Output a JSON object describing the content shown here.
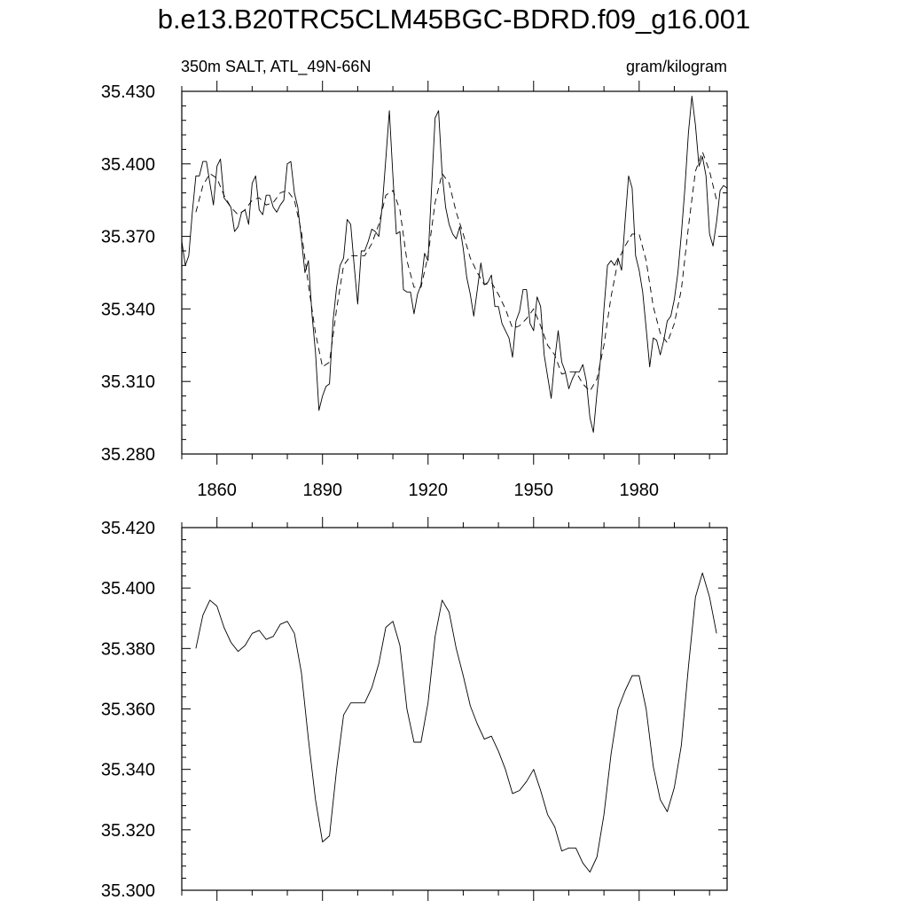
{
  "title": "b.e13.B20TRC5CLM45BGC-BDRD.f09_g16.001",
  "left_string": "350m SALT, ATL_49N-66N",
  "right_string": "gram/kilogram",
  "chart_data": [
    {
      "type": "line",
      "panel": "top",
      "xlim": [
        1850,
        2005
      ],
      "ylim": [
        35.28,
        35.43
      ],
      "xticks": [
        1860,
        1890,
        1920,
        1950,
        1980
      ],
      "xtick_labels": [
        "1860",
        "1890",
        "1920",
        "1950",
        "1980"
      ],
      "yticks": [
        35.28,
        35.31,
        35.34,
        35.37,
        35.4,
        35.43
      ],
      "ytick_labels": [
        "35.280",
        "35.310",
        "35.340",
        "35.370",
        "35.400",
        "35.430"
      ],
      "series": [
        {
          "style": "solid",
          "x": [
            1850,
            1851,
            1852,
            1853,
            1854,
            1855,
            1856,
            1857,
            1858,
            1859,
            1860,
            1861,
            1862,
            1863,
            1864,
            1865,
            1866,
            1867,
            1868,
            1869,
            1870,
            1871,
            1872,
            1873,
            1874,
            1875,
            1876,
            1877,
            1878,
            1879,
            1880,
            1881,
            1882,
            1883,
            1884,
            1885,
            1886,
            1887,
            1888,
            1889,
            1890,
            1891,
            1892,
            1893,
            1894,
            1895,
            1896,
            1897,
            1898,
            1899,
            1900,
            1901,
            1902,
            1903,
            1904,
            1905,
            1906,
            1907,
            1908,
            1909,
            1910,
            1911,
            1912,
            1913,
            1914,
            1915,
            1916,
            1917,
            1918,
            1919,
            1920,
            1921,
            1922,
            1923,
            1924,
            1925,
            1926,
            1927,
            1928,
            1929,
            1930,
            1931,
            1932,
            1933,
            1934,
            1935,
            1936,
            1937,
            1938,
            1939,
            1940,
            1941,
            1942,
            1943,
            1944,
            1945,
            1946,
            1947,
            1948,
            1949,
            1950,
            1951,
            1952,
            1953,
            1954,
            1955,
            1956,
            1957,
            1958,
            1959,
            1960,
            1961,
            1962,
            1963,
            1964,
            1965,
            1966,
            1967,
            1968,
            1969,
            1970,
            1971,
            1972,
            1973,
            1974,
            1975,
            1976,
            1977,
            1978,
            1979,
            1980,
            1981,
            1982,
            1983,
            1984,
            1985,
            1986,
            1987,
            1988,
            1989,
            1990,
            1991,
            1992,
            1993,
            1994,
            1995,
            1996,
            1997,
            1998,
            1999,
            2000,
            2001,
            2002,
            2003,
            2004,
            2005
          ],
          "y": [
            35.368,
            35.358,
            35.362,
            35.38,
            35.395,
            35.395,
            35.401,
            35.401,
            35.392,
            35.383,
            35.399,
            35.402,
            35.386,
            35.384,
            35.382,
            35.372,
            35.374,
            35.38,
            35.381,
            35.375,
            35.392,
            35.395,
            35.381,
            35.379,
            35.387,
            35.387,
            35.382,
            35.38,
            35.383,
            35.385,
            35.4,
            35.401,
            35.388,
            35.382,
            35.369,
            35.355,
            35.36,
            35.338,
            35.322,
            35.298,
            35.304,
            35.308,
            35.309,
            35.335,
            35.349,
            35.358,
            35.361,
            35.377,
            35.375,
            35.358,
            35.342,
            35.364,
            35.364,
            35.368,
            35.373,
            35.372,
            35.37,
            35.383,
            35.402,
            35.422,
            35.395,
            35.371,
            35.372,
            35.348,
            35.347,
            35.347,
            35.338,
            35.346,
            35.35,
            35.363,
            35.36,
            35.39,
            35.419,
            35.422,
            35.396,
            35.382,
            35.375,
            35.371,
            35.369,
            35.374,
            35.365,
            35.353,
            35.346,
            35.337,
            35.348,
            35.359,
            35.35,
            35.351,
            35.354,
            35.341,
            35.341,
            35.334,
            35.331,
            35.328,
            35.32,
            35.335,
            35.339,
            35.348,
            35.348,
            35.334,
            35.331,
            35.345,
            35.341,
            35.321,
            35.312,
            35.303,
            35.319,
            35.331,
            35.318,
            35.314,
            35.307,
            35.311,
            35.314,
            35.314,
            35.317,
            35.31,
            35.295,
            35.289,
            35.305,
            35.319,
            35.34,
            35.358,
            35.36,
            35.358,
            35.361,
            35.356,
            35.376,
            35.395,
            35.39,
            35.362,
            35.356,
            35.347,
            35.332,
            35.316,
            35.328,
            35.327,
            35.321,
            35.327,
            35.335,
            35.337,
            35.344,
            35.355,
            35.371,
            35.39,
            35.413,
            35.428,
            35.416,
            35.399,
            35.403,
            35.395,
            35.371,
            35.366,
            35.376,
            35.389,
            35.391,
            35.39
          ]
        },
        {
          "style": "dashed",
          "x": [
            1854,
            1856,
            1858,
            1860,
            1862,
            1864,
            1866,
            1868,
            1870,
            1872,
            1874,
            1876,
            1878,
            1880,
            1882,
            1884,
            1886,
            1888,
            1890,
            1892,
            1894,
            1896,
            1898,
            1900,
            1902,
            1904,
            1906,
            1908,
            1910,
            1912,
            1914,
            1916,
            1918,
            1920,
            1922,
            1924,
            1926,
            1928,
            1930,
            1932,
            1934,
            1936,
            1938,
            1940,
            1942,
            1944,
            1946,
            1948,
            1950,
            1952,
            1954,
            1956,
            1958,
            1960,
            1962,
            1964,
            1966,
            1968,
            1970,
            1972,
            1974,
            1976,
            1978,
            1980,
            1982,
            1984,
            1986,
            1988,
            1990,
            1992,
            1994,
            1996,
            1998,
            2000,
            2002
          ],
          "y": [
            35.38,
            35.391,
            35.396,
            35.394,
            35.387,
            35.382,
            35.379,
            35.381,
            35.385,
            35.386,
            35.383,
            35.384,
            35.388,
            35.389,
            35.385,
            35.372,
            35.35,
            35.33,
            35.316,
            35.318,
            35.34,
            35.358,
            35.362,
            35.362,
            35.362,
            35.367,
            35.375,
            35.387,
            35.389,
            35.381,
            35.36,
            35.349,
            35.349,
            35.362,
            35.384,
            35.396,
            35.392,
            35.38,
            35.371,
            35.361,
            35.355,
            35.35,
            35.351,
            35.346,
            35.34,
            35.332,
            35.333,
            35.336,
            35.34,
            35.333,
            35.325,
            35.321,
            35.313,
            35.314,
            35.314,
            35.309,
            35.306,
            35.311,
            35.325,
            35.345,
            35.36,
            35.366,
            35.371,
            35.371,
            35.36,
            35.341,
            35.33,
            35.326,
            35.334,
            35.348,
            35.374,
            35.397,
            35.405,
            35.397,
            35.385
          ]
        }
      ]
    },
    {
      "type": "line",
      "panel": "bottom",
      "xlim": [
        1850,
        2005
      ],
      "ylim": [
        35.3,
        35.42
      ],
      "xticks": [
        1860,
        1890,
        1920,
        1950,
        1980
      ],
      "yticks": [
        35.3,
        35.32,
        35.34,
        35.36,
        35.38,
        35.4,
        35.42
      ],
      "ytick_labels": [
        "35.300",
        "35.320",
        "35.340",
        "35.360",
        "35.380",
        "35.400",
        "35.420"
      ],
      "series": [
        {
          "style": "solid",
          "x": [
            1854,
            1856,
            1858,
            1860,
            1862,
            1864,
            1866,
            1868,
            1870,
            1872,
            1874,
            1876,
            1878,
            1880,
            1882,
            1884,
            1886,
            1888,
            1890,
            1892,
            1894,
            1896,
            1898,
            1900,
            1902,
            1904,
            1906,
            1908,
            1910,
            1912,
            1914,
            1916,
            1918,
            1920,
            1922,
            1924,
            1926,
            1928,
            1930,
            1932,
            1934,
            1936,
            1938,
            1940,
            1942,
            1944,
            1946,
            1948,
            1950,
            1952,
            1954,
            1956,
            1958,
            1960,
            1962,
            1964,
            1966,
            1968,
            1970,
            1972,
            1974,
            1976,
            1978,
            1980,
            1982,
            1984,
            1986,
            1988,
            1990,
            1992,
            1994,
            1996,
            1998,
            2000,
            2002
          ],
          "y": [
            35.38,
            35.391,
            35.396,
            35.394,
            35.387,
            35.382,
            35.379,
            35.381,
            35.385,
            35.386,
            35.383,
            35.384,
            35.388,
            35.389,
            35.385,
            35.372,
            35.35,
            35.33,
            35.316,
            35.318,
            35.34,
            35.358,
            35.362,
            35.362,
            35.362,
            35.367,
            35.375,
            35.387,
            35.389,
            35.381,
            35.36,
            35.349,
            35.349,
            35.362,
            35.384,
            35.396,
            35.392,
            35.38,
            35.371,
            35.361,
            35.355,
            35.35,
            35.351,
            35.346,
            35.34,
            35.332,
            35.333,
            35.336,
            35.34,
            35.333,
            35.325,
            35.321,
            35.313,
            35.314,
            35.314,
            35.309,
            35.306,
            35.311,
            35.325,
            35.345,
            35.36,
            35.366,
            35.371,
            35.371,
            35.36,
            35.341,
            35.33,
            35.326,
            35.334,
            35.348,
            35.374,
            35.397,
            35.405,
            35.397,
            35.385
          ]
        }
      ]
    }
  ]
}
